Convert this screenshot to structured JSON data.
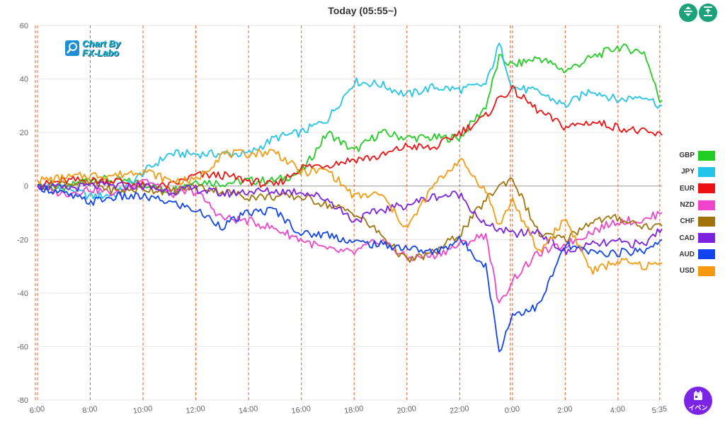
{
  "chart_data": {
    "type": "line",
    "title": "Today  (05:55~)",
    "ylim": [
      -80,
      60
    ],
    "yticks": [
      60,
      40,
      20,
      0,
      -20,
      -40,
      -60,
      -80
    ],
    "xlim": [
      0,
      23.667
    ],
    "xticks": [
      {
        "label": "6:00",
        "h": 0
      },
      {
        "label": "8:00",
        "h": 2
      },
      {
        "label": "10:00",
        "h": 4
      },
      {
        "label": "12:00",
        "h": 6
      },
      {
        "label": "14:00",
        "h": 8
      },
      {
        "label": "16:00",
        "h": 10
      },
      {
        "label": "18:00",
        "h": 12
      },
      {
        "label": "20:00",
        "h": 14
      },
      {
        "label": "22:00",
        "h": 16
      },
      {
        "label": "0:00",
        "h": 18
      },
      {
        "label": "2:00",
        "h": 20
      },
      {
        "label": "4:00",
        "h": 22
      },
      {
        "label": "5:35",
        "h": 23.583
      }
    ],
    "session_lines_h": [
      -0.083,
      0,
      2,
      4,
      6,
      8,
      10,
      12,
      14,
      16,
      17.917,
      18,
      20,
      22,
      23.583
    ],
    "x": [
      0,
      1,
      2,
      3,
      4,
      5,
      6,
      7,
      8,
      9,
      10,
      11,
      12,
      13,
      14,
      15,
      16,
      17,
      17.5,
      18,
      19,
      20,
      21,
      22,
      23,
      23.583
    ],
    "series": [
      {
        "name": "GBP",
        "color": "#22cc22",
        "values": [
          0,
          -1,
          3,
          2,
          1,
          -2,
          2,
          1,
          2,
          2,
          5,
          20,
          13,
          20,
          18,
          18,
          18,
          30,
          48,
          45,
          48,
          43,
          48,
          52,
          50,
          32
        ]
      },
      {
        "name": "JPY",
        "color": "#22c4ea",
        "values": [
          0,
          0,
          -4,
          -3,
          5,
          12,
          12,
          12,
          12,
          18,
          20,
          25,
          39,
          38,
          34,
          37,
          36,
          38,
          53,
          37,
          35,
          30,
          36,
          32,
          34,
          30
        ]
      },
      {
        "name": "EUR",
        "color": "#ee1111",
        "values": [
          0,
          2,
          2,
          2,
          0,
          0,
          4,
          4,
          2,
          0,
          7,
          8,
          10,
          11,
          15,
          14,
          20,
          26,
          33,
          36,
          28,
          22,
          24,
          22,
          20,
          19
        ]
      },
      {
        "name": "NZD",
        "color": "#ee44cc",
        "values": [
          0,
          -3,
          -1,
          -3,
          3,
          -3,
          -2,
          -12,
          -13,
          -16,
          -20,
          -24,
          -25,
          -20,
          -27,
          -26,
          -22,
          -18,
          -45,
          -35,
          -25,
          -22,
          -17,
          -13,
          -13,
          -10
        ]
      },
      {
        "name": "CHF",
        "color": "#a0740a",
        "values": [
          0,
          1,
          1,
          -2,
          -1,
          -2,
          0,
          -2,
          -4,
          -4,
          -4,
          -7,
          -10,
          -18,
          -28,
          -25,
          -18,
          -5,
          0,
          3,
          -18,
          -20,
          -13,
          -12,
          -15,
          -15
        ]
      },
      {
        "name": "CAD",
        "color": "#7a22e0",
        "values": [
          0,
          -1,
          0,
          0,
          0,
          -2,
          -1,
          -3,
          -2,
          -2,
          -2,
          -5,
          -13,
          -9,
          -7,
          -4,
          -3,
          -15,
          -16,
          -18,
          -17,
          -25,
          -22,
          -21,
          -22,
          -16
        ]
      },
      {
        "name": "AUD",
        "color": "#1144ee",
        "values": [
          0,
          -3,
          -6,
          -4,
          -4,
          -6,
          -9,
          -15,
          -10,
          -9,
          -18,
          -18,
          -21,
          -22,
          -23,
          -25,
          -20,
          -30,
          -62,
          -48,
          -45,
          -22,
          -25,
          -25,
          -24,
          -20
        ]
      },
      {
        "name": "USD",
        "color": "#f59a10",
        "values": [
          2,
          3,
          4,
          4,
          6,
          2,
          2,
          12,
          12,
          13,
          5,
          6,
          -4,
          -3,
          -16,
          0,
          10,
          -2,
          -15,
          -5,
          -25,
          -12,
          -32,
          -28,
          -30,
          -29
        ]
      }
    ]
  },
  "logo": {
    "line1": "Chart By",
    "line2": "FX-Labo"
  },
  "toolbar": {
    "expand_icon": "vertical-expand-icon",
    "fit_icon": "fit-height-icon"
  },
  "event_button": {
    "label": "イベン",
    "icon": "calendar-icon"
  }
}
